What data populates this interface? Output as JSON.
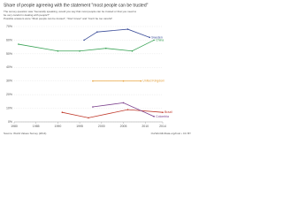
{
  "chart_data": {
    "type": "line",
    "title": "Share of people agreeing with the statement \"most people can be trusted\"",
    "subtitle": [
      "The survey question was \"Generally speaking, would you say that most people can be trusted or that you need to",
      "be very careful in dealing with people?\"",
      "Possible answers were \"Most people can be trusted\", \"Don't know\" and \"Can't be too careful\"."
    ],
    "source": "Source: World Values Survey (2014)",
    "credit": "OurWorldInData.org/trust • CC BY",
    "xlim": [
      1980,
      2014
    ],
    "xticks": [
      1980,
      1985,
      1990,
      1995,
      2000,
      2005,
      2010,
      2014
    ],
    "ylim": [
      0,
      70
    ],
    "yticks": [
      {
        "value": 0,
        "label": "0%"
      },
      {
        "value": 10,
        "label": "10%"
      },
      {
        "value": 20,
        "label": "20%"
      },
      {
        "value": 30,
        "label": "30%"
      },
      {
        "value": 40,
        "label": "40%"
      },
      {
        "value": 50,
        "label": "50%"
      },
      {
        "value": 60,
        "label": "60%"
      },
      {
        "value": 70,
        "label": "70%"
      }
    ],
    "grid": true,
    "series": [
      {
        "name": "Sweden",
        "color": "#3c4e9a",
        "x": [
          1996,
          1999,
          2006,
          2011
        ],
        "values": [
          60,
          66,
          68,
          62
        ]
      },
      {
        "name": "China",
        "color": "#3aa356",
        "x": [
          1981,
          1990,
          1995,
          2001,
          2007,
          2012
        ],
        "values": [
          57,
          52,
          52,
          54,
          52,
          60
        ]
      },
      {
        "name": "United Kingdom",
        "color": "#e8a33d",
        "x": [
          1998,
          2005,
          2009
        ],
        "values": [
          30,
          30,
          30
        ]
      },
      {
        "name": "Brazil",
        "color": "#c0392b",
        "x": [
          1991,
          1997,
          2006,
          2014
        ],
        "values": [
          7,
          3,
          9,
          7
        ]
      },
      {
        "name": "Colombia",
        "color": "#7b3f8c",
        "x": [
          1998,
          2005,
          2012
        ],
        "values": [
          11,
          14,
          4
        ]
      }
    ]
  }
}
